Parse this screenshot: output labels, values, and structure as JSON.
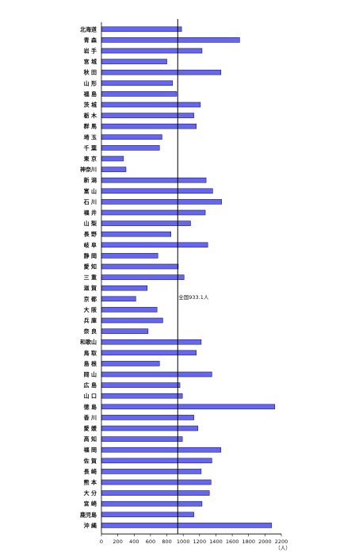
{
  "chart_data": {
    "type": "bar",
    "orientation": "horizontal",
    "categories": [
      "北海道",
      "青 森",
      "岩 手",
      "宮 城",
      "秋 田",
      "山 形",
      "福 島",
      "茨 城",
      "栃 木",
      "群 馬",
      "埼 玉",
      "千 葉",
      "東 京",
      "神奈川",
      "新 潟",
      "富 山",
      "石 川",
      "福 井",
      "山 梨",
      "長 野",
      "岐 阜",
      "静 岡",
      "愛 知",
      "三 重",
      "滋 賀",
      "京 都",
      "大 阪",
      "兵 庫",
      "奈 良",
      "和歌山",
      "鳥 取",
      "島 根",
      "岡 山",
      "広 島",
      "山 口",
      "徳 島",
      "香 川",
      "愛 媛",
      "高 知",
      "福 岡",
      "佐 賀",
      "長 崎",
      "熊 本",
      "大 分",
      "宮 崎",
      "鹿児島",
      "沖 縄"
    ],
    "values": [
      980,
      1690,
      1230,
      800,
      1460,
      870,
      920,
      1210,
      1130,
      1160,
      740,
      710,
      270,
      300,
      1280,
      1360,
      1470,
      1270,
      1090,
      850,
      1300,
      690,
      940,
      1010,
      560,
      420,
      680,
      750,
      570,
      1220,
      1160,
      710,
      1350,
      960,
      990,
      2120,
      1130,
      1180,
      990,
      1460,
      1350,
      1220,
      1340,
      1320,
      1230,
      1130,
      2080
    ],
    "xlim": [
      0,
      2200
    ],
    "xticks": [
      0,
      200,
      400,
      600,
      800,
      1000,
      1200,
      1400,
      1600,
      1800,
      2000,
      2200
    ],
    "xunit": "（人）",
    "reference_line": {
      "value": 933.1,
      "label": "全国933.1人"
    },
    "bar_color": "#6666ee",
    "bar_edge_color": "#1a1a6e",
    "grid": false
  }
}
